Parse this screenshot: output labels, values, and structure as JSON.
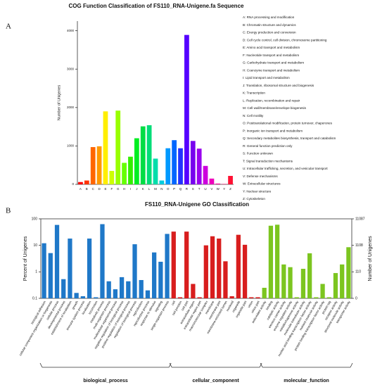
{
  "chart_data": [
    {
      "type": "bar",
      "panel": "A",
      "title": "COG Function Classification of FS110_RNA-Unigene.fa Sequence",
      "ylabel": "Number of Unigenes",
      "categories": [
        "A",
        "B",
        "C",
        "D",
        "E",
        "F",
        "G",
        "H",
        "I",
        "J",
        "K",
        "L",
        "M",
        "N",
        "O",
        "P",
        "Q",
        "R",
        "S",
        "T",
        "U",
        "V",
        "W",
        "Y",
        "Z"
      ],
      "values": [
        60,
        100,
        970,
        990,
        1900,
        350,
        1920,
        560,
        720,
        1200,
        1510,
        1540,
        670,
        100,
        940,
        1150,
        940,
        3890,
        1130,
        930,
        480,
        150,
        20,
        10,
        220
      ],
      "colors": [
        "#ff0000",
        "#ff3300",
        "#ff6600",
        "#ff9900",
        "#ffee00",
        "#ccff00",
        "#99ff00",
        "#66ff00",
        "#33ee00",
        "#00ee22",
        "#00dd44",
        "#00dd77",
        "#00ddaa",
        "#00ccdd",
        "#0099ff",
        "#0066ff",
        "#2233ff",
        "#5500ff",
        "#7700ee",
        "#9900ee",
        "#cc00dd",
        "#ee00bb",
        "#ff0099",
        "#ff0066",
        "#ff1133"
      ],
      "ylim": [
        0,
        4250
      ],
      "yticks": [
        0,
        1000,
        2000,
        3000,
        4000
      ],
      "descriptions": [
        "A: RNA processing and modification",
        "B: Chromatin structure and dynamics",
        "C: Energy production and conversion",
        "D: Cell cycle control, cell division, chromosome partitioning",
        "E: Amino acid transport and metabolism",
        "F: Nucleotide transport and metabolism",
        "G: Carbohydrate transport and metabolism",
        "H: Coenzyme transport and metabolism",
        "I: Lipid transport and metabolism",
        "J: Translation, ribosomal structure and biogenesis",
        "K: Transcription",
        "L: Replication, recombination and repair",
        "M: Cell wall/membrane/envelope biogenesis",
        "N: Cell motility",
        "O: Posttranslational modification, protein turnover, chaperones",
        "P: Inorganic ion transport and metabolism",
        "Q: Secondary metabolites biosynthesis, transport and catabolism",
        "R: General function prediction only",
        "S: Function unknown",
        "T: Signal transduction mechanisms",
        "U: Intracellular trafficking, secretion, and vesicular transport",
        "V: Defense mechanisms",
        "W: Extracellular structures",
        "Y: Nuclear structure",
        "Z: Cytoskeleton"
      ]
    },
    {
      "type": "grouped-log-bar",
      "panel": "B",
      "title": "FS110_RNA-Unigene GO Classification",
      "ylabel": "Percent of Unigenes",
      "y2label": "Number of Unigenes",
      "log": true,
      "ylim": [
        0.1,
        100
      ],
      "yticks": [
        0.1,
        1,
        10,
        100
      ],
      "y2ticks": [
        0,
        110,
        1108,
        11087
      ],
      "series": [
        {
          "name": "biological_process",
          "color": "#1f78c8",
          "categories": [
            "biological adhesion",
            "cellular component organization or biogenesis",
            "cellular process",
            "developmental process",
            "establishment of localization",
            "growth",
            "immune system process",
            "localization",
            "locomotion",
            "metabolic process",
            "multi-organism process",
            "multicellular organismal process",
            "negative regulation of biological process",
            "positive regulation of biological process",
            "regulation of biological process",
            "reproduction",
            "reproductive process",
            "response to stimulus",
            "signaling",
            "single-organism process"
          ],
          "values": [
            12,
            5.1,
            59,
            0.53,
            18,
            0.16,
            0.12,
            18,
            0.11,
            63,
            0.44,
            0.22,
            0.63,
            0.44,
            11,
            0.49,
            0.2,
            5.4,
            2.4,
            27
          ]
        },
        {
          "name": "cellular_component",
          "color": "#d81e1e",
          "categories": [
            "cell",
            "cell junction",
            "cell part",
            "extracellular region",
            "extracellular region part",
            "macromolecular complex",
            "membrane",
            "membrane part",
            "membrane-enclosed lumen",
            "nucleoid",
            "organelle",
            "organelle part",
            "virion",
            "virion part"
          ],
          "values": [
            33,
            0.11,
            33,
            0.35,
            0.11,
            10,
            22,
            18,
            2.5,
            0.12,
            25,
            10.5,
            0.11,
            0.11
          ]
        },
        {
          "name": "molecular_function",
          "color": "#7cc520",
          "categories": [
            "antioxidant activity",
            "binding",
            "catalytic activity",
            "electron carrier activity",
            "enzyme regulator activity",
            "metallochaperone activity",
            "molecular transducer activity",
            "nucleic acid binding transcription factor activity",
            "nutrient reservoir activity",
            "protein binding transcription factor activity",
            "protein tag",
            "receptor activity",
            "structural molecule activity",
            "transporter activity"
          ],
          "values": [
            0.25,
            55,
            60,
            1.9,
            1.5,
            0.11,
            1.3,
            5,
            0.11,
            0.35,
            0.11,
            0.9,
            1.9,
            8.5
          ]
        }
      ]
    }
  ]
}
